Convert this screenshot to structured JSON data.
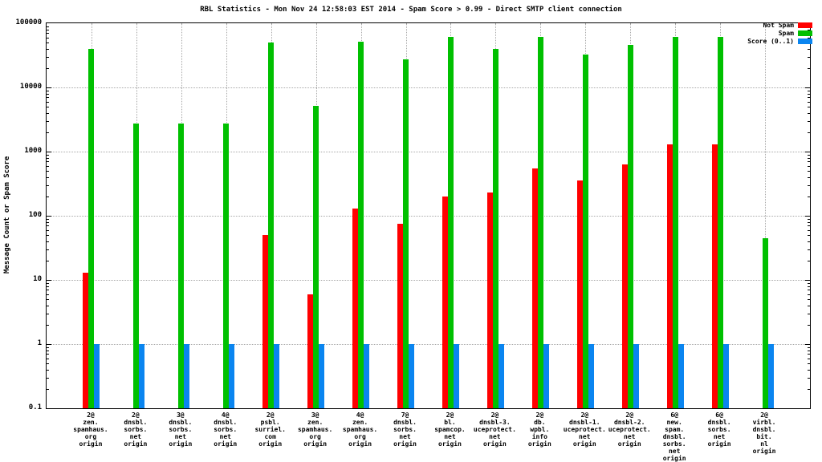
{
  "chart_data": {
    "type": "bar",
    "title": "RBL Statistics - Mon Nov 24 12:58:03 EST 2014 - Spam Score > 0.99 - Direct SMTP client connection",
    "xlabel": "",
    "ylabel": "Message Count or Spam Score",
    "yscale": "log",
    "ylim": [
      0.1,
      100000
    ],
    "yticks": [
      "100000",
      "10000",
      "1000",
      "100",
      "10",
      "1",
      "0.1"
    ],
    "ytick_values": [
      100000,
      10000,
      1000,
      100,
      10,
      1,
      0.1
    ],
    "grid": true,
    "legend_position": "top-right",
    "categories": [
      [
        "2@",
        "zen.",
        "spamhaus.",
        "org",
        "origin"
      ],
      [
        "2@",
        "dnsbl.",
        "sorbs.",
        "net",
        "origin"
      ],
      [
        "3@",
        "dnsbl.",
        "sorbs.",
        "net",
        "origin"
      ],
      [
        "4@",
        "dnsbl.",
        "sorbs.",
        "net",
        "origin"
      ],
      [
        "2@",
        "psbl.",
        "surriel.",
        "com",
        "origin"
      ],
      [
        "3@",
        "zen.",
        "spamhaus.",
        "org",
        "origin"
      ],
      [
        "4@",
        "zen.",
        "spamhaus.",
        "org",
        "origin"
      ],
      [
        "7@",
        "dnsbl.",
        "sorbs.",
        "net",
        "origin"
      ],
      [
        "2@",
        "bl.",
        "spamcop.",
        "net",
        "origin"
      ],
      [
        "2@",
        "dnsbl-3.",
        "uceprotect.",
        "net",
        "origin"
      ],
      [
        "2@",
        "db.",
        "wpbl.",
        "info",
        "origin"
      ],
      [
        "2@",
        "dnsbl-1.",
        "uceprotect.",
        "net",
        "origin"
      ],
      [
        "2@",
        "dnsbl-2.",
        "uceprotect.",
        "net",
        "origin"
      ],
      [
        "6@",
        "new.",
        "spam.",
        "dnsbl.",
        "sorbs.",
        "net",
        "origin"
      ],
      [
        "6@",
        "dnsbl.",
        "sorbs.",
        "net",
        "origin"
      ],
      [
        "2@",
        "virbl.",
        "dnsbl.",
        "bit.",
        "nl",
        "origin"
      ]
    ],
    "series": [
      {
        "name": "Not Spam",
        "color": "#ff0000",
        "values": [
          13,
          null,
          null,
          null,
          50,
          6,
          130,
          75,
          200,
          230,
          540,
          350,
          640,
          1300,
          1300,
          null
        ]
      },
      {
        "name": "Spam",
        "color": "#00c000",
        "values": [
          40000,
          2700,
          2700,
          2700,
          50000,
          5200,
          52000,
          27000,
          62000,
          40000,
          62000,
          33000,
          46000,
          62000,
          62000,
          45
        ]
      },
      {
        "name": "Score (0..1)",
        "color": "#0a85f0",
        "values": [
          1,
          1,
          1,
          1,
          1,
          1,
          1,
          1,
          1,
          1,
          1,
          1,
          1,
          1,
          1,
          1
        ]
      }
    ]
  }
}
